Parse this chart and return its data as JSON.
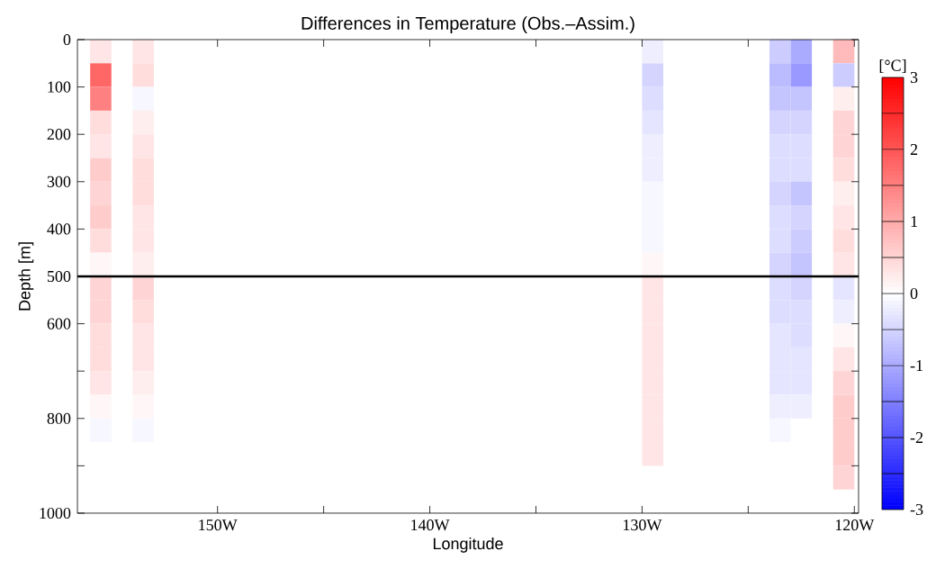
{
  "chart_data": {
    "type": "heatmap",
    "title": "Differences in Temperature (Obs.–Assim.)",
    "xlabel": "Longitude",
    "ylabel": "Depth [m]",
    "clabel": "[°C]",
    "x": [
      -155.5,
      -154.5,
      -153.5,
      -152.5,
      -130.5,
      -129.5,
      -128.5,
      -124.5,
      -123.5,
      -122.5,
      -121.5,
      -120.5
    ],
    "y": [
      25,
      75,
      125,
      175,
      225,
      275,
      325,
      375,
      425,
      475,
      525,
      575,
      625,
      675,
      725,
      775,
      825,
      875,
      925
    ],
    "cells": [
      [
        0.3,
        null,
        0.3,
        null,
        null,
        -0.2,
        null,
        null,
        -0.6,
        -1.0,
        null,
        0.8
      ],
      [
        1.8,
        null,
        0.4,
        null,
        null,
        -0.5,
        null,
        null,
        -0.8,
        -1.2,
        null,
        -0.6
      ],
      [
        1.5,
        null,
        -0.1,
        null,
        null,
        -0.4,
        null,
        null,
        -0.7,
        -0.7,
        null,
        0.2
      ],
      [
        0.4,
        null,
        0.2,
        null,
        null,
        -0.3,
        null,
        null,
        -0.5,
        -0.5,
        null,
        0.5
      ],
      [
        0.3,
        null,
        0.3,
        null,
        null,
        -0.2,
        null,
        null,
        -0.4,
        -0.4,
        null,
        0.5
      ],
      [
        0.6,
        null,
        0.4,
        null,
        null,
        -0.2,
        null,
        null,
        -0.4,
        -0.4,
        null,
        0.4
      ],
      [
        0.5,
        null,
        0.4,
        null,
        null,
        -0.1,
        null,
        null,
        -0.5,
        -0.7,
        null,
        0.2
      ],
      [
        0.6,
        null,
        0.3,
        null,
        null,
        -0.1,
        null,
        null,
        -0.4,
        -0.5,
        null,
        0.3
      ],
      [
        0.4,
        null,
        0.3,
        null,
        null,
        -0.1,
        null,
        null,
        -0.4,
        -0.6,
        null,
        0.4
      ],
      [
        0.1,
        null,
        0.2,
        null,
        null,
        0.1,
        null,
        null,
        -0.5,
        -0.7,
        null,
        0.3
      ],
      [
        0.5,
        null,
        0.5,
        null,
        null,
        0.3,
        null,
        null,
        -0.4,
        -0.5,
        null,
        -0.3
      ],
      [
        0.5,
        null,
        0.4,
        null,
        null,
        0.3,
        null,
        null,
        -0.4,
        -0.4,
        null,
        -0.2
      ],
      [
        0.4,
        null,
        0.3,
        null,
        null,
        0.3,
        null,
        null,
        -0.3,
        -0.4,
        null,
        0.1
      ],
      [
        0.4,
        null,
        0.3,
        null,
        null,
        0.3,
        null,
        null,
        -0.3,
        -0.3,
        null,
        0.3
      ],
      [
        0.3,
        null,
        0.2,
        null,
        null,
        0.3,
        null,
        null,
        -0.3,
        -0.3,
        null,
        0.5
      ],
      [
        0.1,
        null,
        0.1,
        null,
        null,
        0.3,
        null,
        null,
        -0.2,
        -0.2,
        null,
        0.6
      ],
      [
        -0.1,
        null,
        -0.1,
        null,
        null,
        0.3,
        null,
        null,
        -0.1,
        null,
        null,
        0.6
      ],
      [
        null,
        null,
        null,
        null,
        null,
        0.3,
        null,
        null,
        null,
        null,
        null,
        0.6
      ],
      [
        null,
        null,
        null,
        null,
        null,
        null,
        null,
        null,
        null,
        null,
        null,
        0.5
      ]
    ],
    "xlim": [
      -156.6,
      -119.8
    ],
    "xticks": [
      {
        "value": -150,
        "label": "150W"
      },
      {
        "value": -145,
        "label": null
      },
      {
        "value": -140,
        "label": "140W"
      },
      {
        "value": -135,
        "label": null
      },
      {
        "value": -130,
        "label": "130W"
      },
      {
        "value": -125,
        "label": null
      },
      {
        "value": -120,
        "label": "120W"
      }
    ],
    "ylim": [
      1000,
      0
    ],
    "yticks": [
      0,
      100,
      200,
      300,
      400,
      500,
      600,
      {
        "value": 700,
        "label": null
      },
      800,
      {
        "value": 900,
        "label": null
      },
      1000
    ],
    "clim": [
      -3,
      3
    ],
    "cticks": [
      -3,
      -2,
      -1,
      0,
      1,
      2,
      3
    ],
    "ref_lines": [
      {
        "axis": "y",
        "value": 500,
        "color": "#000000"
      }
    ]
  }
}
